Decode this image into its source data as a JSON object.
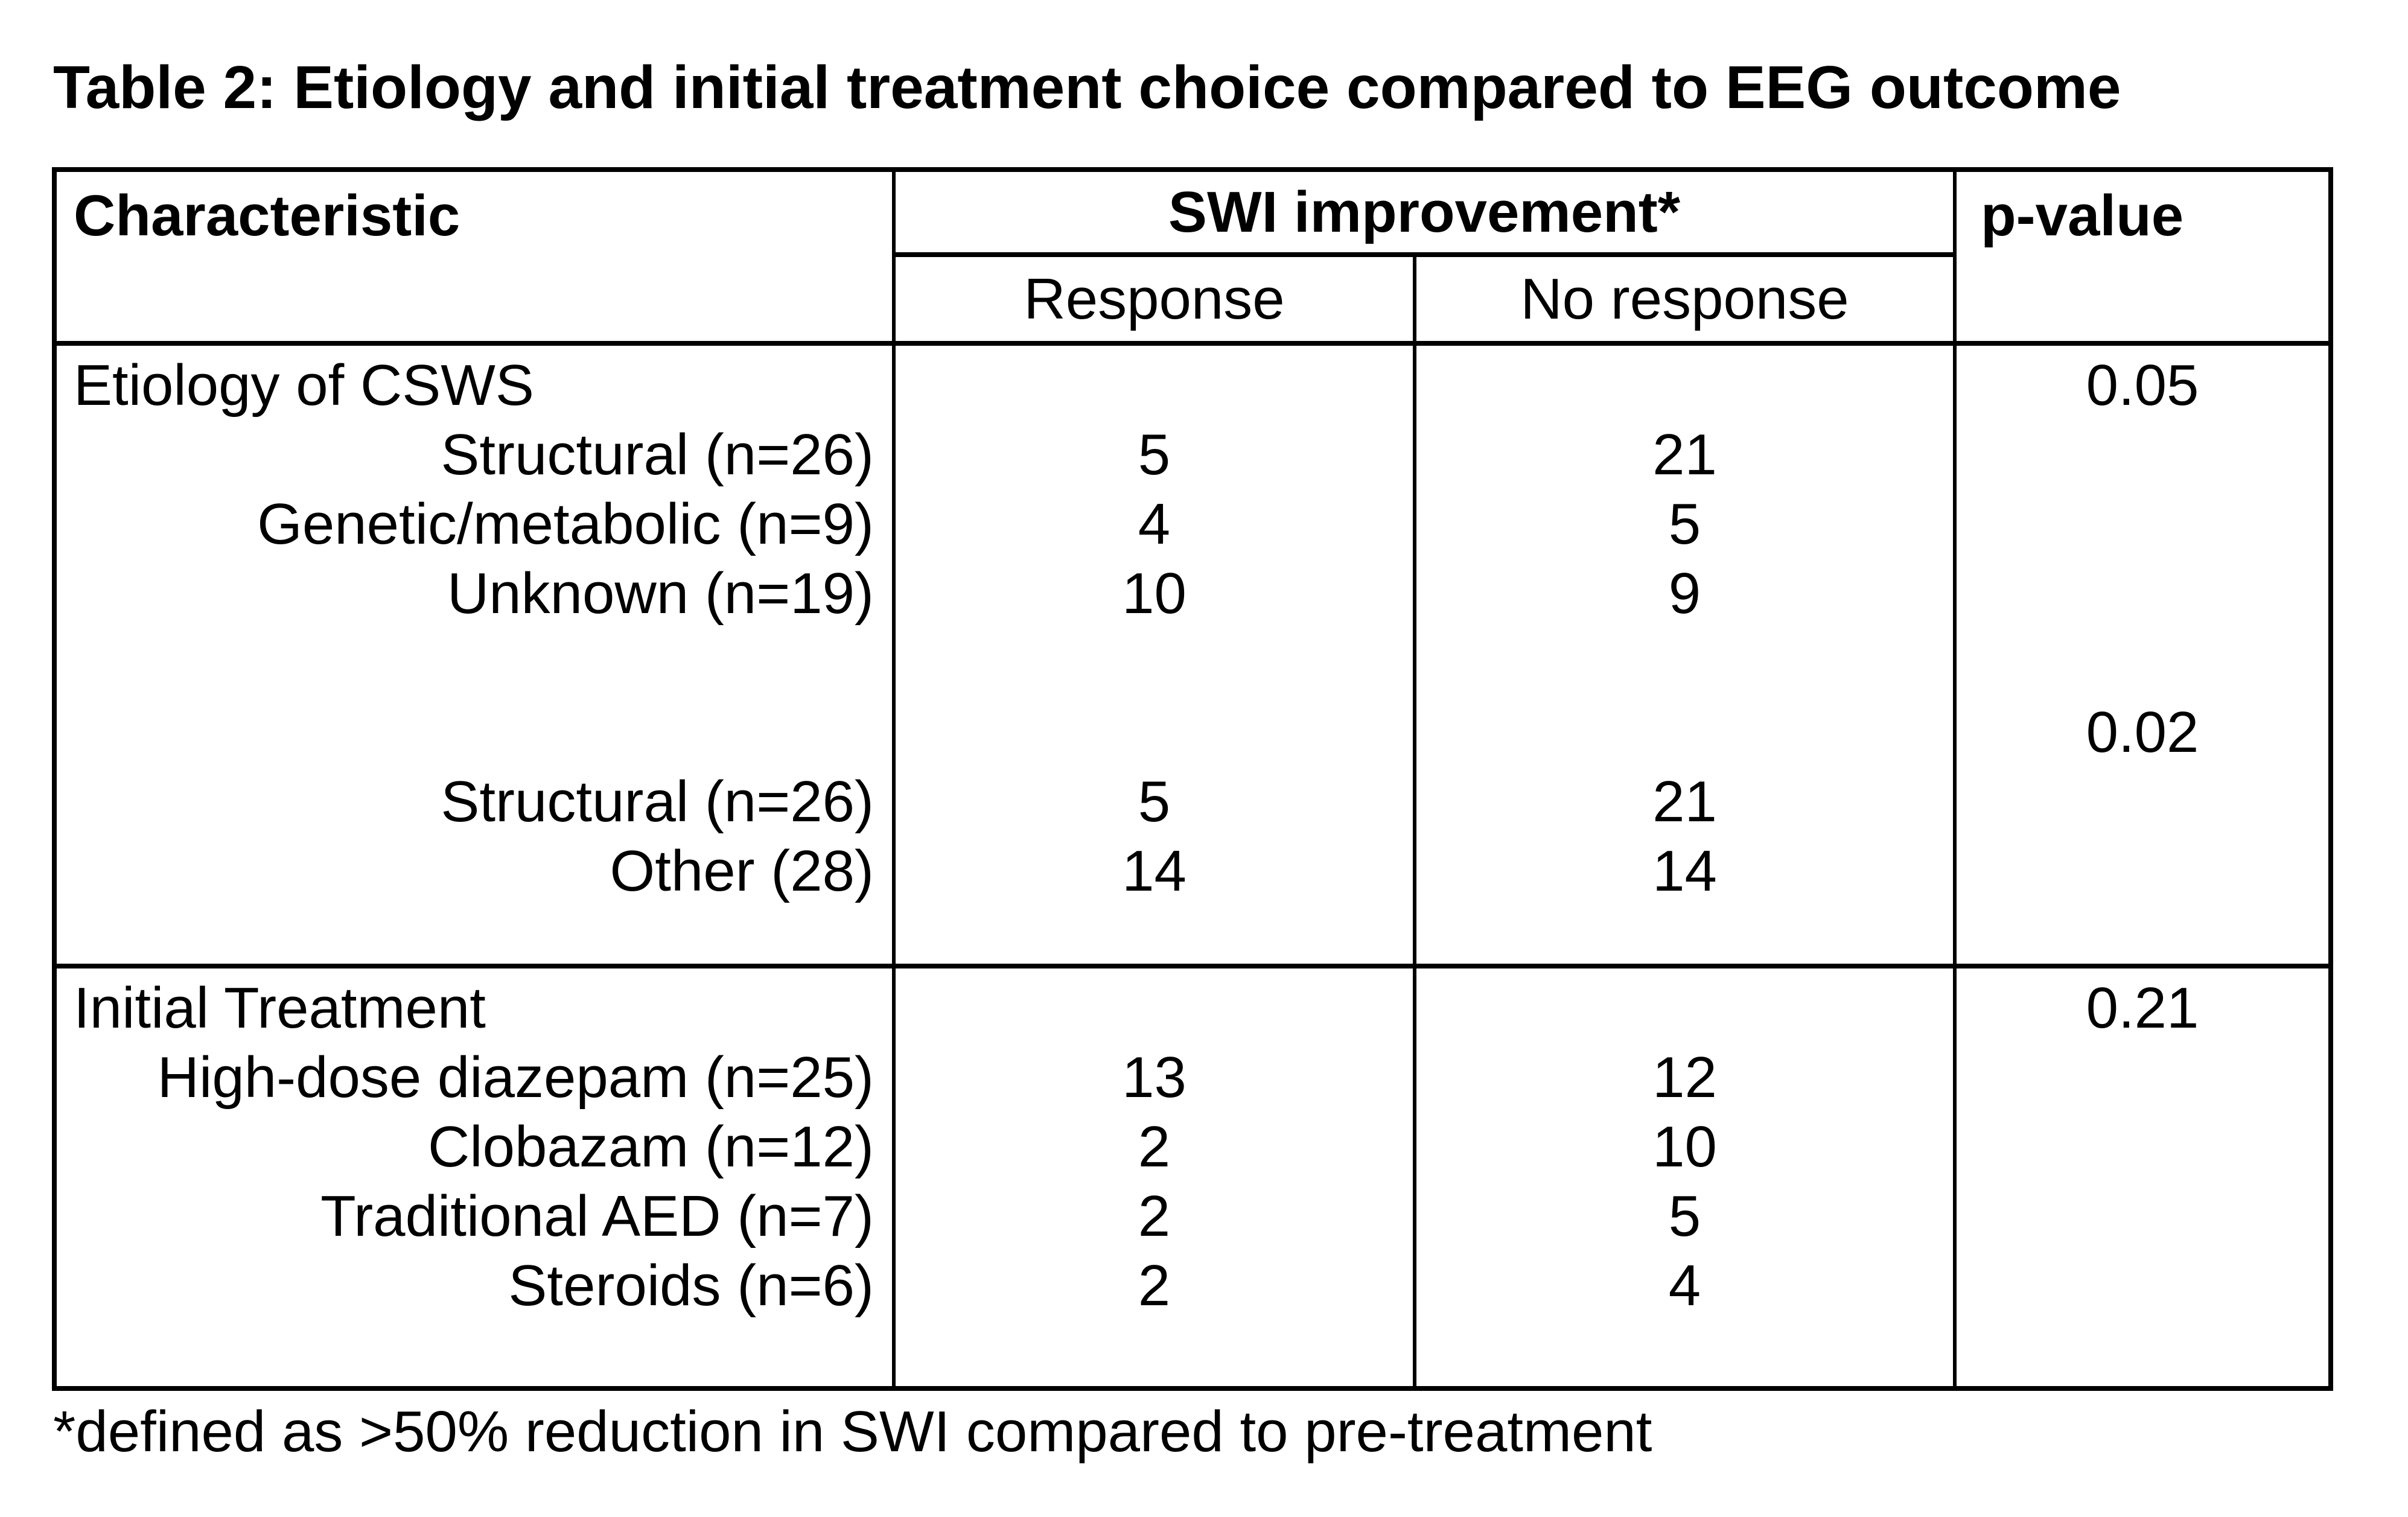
{
  "title": "Table 2: Etiology and initial treatment choice compared to EEG outcome",
  "footnote": "*defined as >50% reduction in SWI compared to pre-treatment",
  "header": {
    "characteristic": "Characteristic",
    "swi_improvement": "SWI improvement*",
    "response": "Response",
    "no_response": "No response",
    "p_value": "p-value"
  },
  "sections": [
    {
      "name": "etiology-of-csws",
      "lines": [
        {
          "label": "Etiology of CSWS",
          "align": "left",
          "response": "",
          "no_response": "",
          "p": "0.05"
        },
        {
          "label": "Structural (n=26)",
          "align": "right",
          "response": "5",
          "no_response": "21",
          "p": ""
        },
        {
          "label": "Genetic/metabolic (n=9)",
          "align": "right",
          "response": "4",
          "no_response": "5",
          "p": ""
        },
        {
          "label": "Unknown (n=19)",
          "align": "right",
          "response": "10",
          "no_response": "9",
          "p": ""
        },
        {
          "label": "",
          "align": "right",
          "response": "",
          "no_response": "",
          "p": ""
        },
        {
          "label": "",
          "align": "right",
          "response": "",
          "no_response": "",
          "p": "0.02"
        },
        {
          "label": "Structural (n=26)",
          "align": "right",
          "response": "5",
          "no_response": "21",
          "p": ""
        },
        {
          "label": "Other (28)",
          "align": "right",
          "response": "14",
          "no_response": "14",
          "p": ""
        }
      ]
    },
    {
      "name": "initial-treatment",
      "lines": [
        {
          "label": "Initial Treatment",
          "align": "left",
          "response": "",
          "no_response": "",
          "p": "0.21"
        },
        {
          "label": "High-dose diazepam (n=25)",
          "align": "right",
          "response": "13",
          "no_response": "12",
          "p": ""
        },
        {
          "label": "Clobazam (n=12)",
          "align": "right",
          "response": "2",
          "no_response": "10",
          "p": ""
        },
        {
          "label": "Traditional AED (n=7)",
          "align": "right",
          "response": "2",
          "no_response": "5",
          "p": ""
        },
        {
          "label": "Steroids (n=6)",
          "align": "right",
          "response": "2",
          "no_response": "4",
          "p": ""
        }
      ]
    }
  ]
}
